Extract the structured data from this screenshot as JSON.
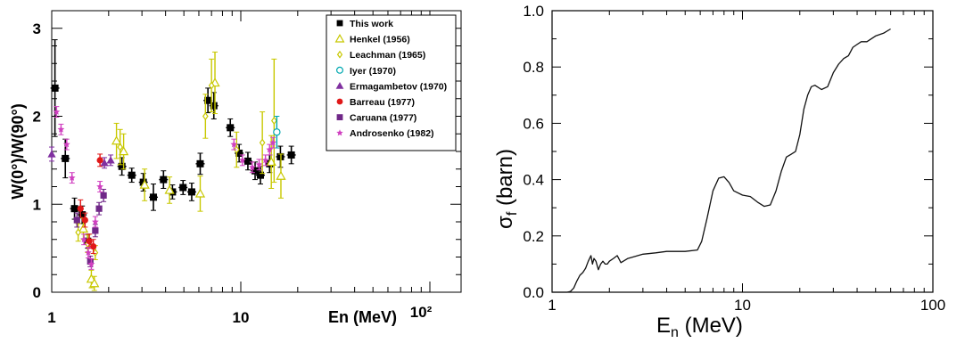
{
  "chart_data": [
    {
      "type": "scatter",
      "xlabel": "En (MeV)",
      "ylabel": "W(0°)/W(90°)",
      "xscale": "log",
      "xlim": [
        1,
        130
      ],
      "ylim": [
        0,
        3.2
      ],
      "xticklabels": [
        "1",
        "10",
        "10²"
      ],
      "yticklabels": [
        "0",
        "1",
        "2",
        "3"
      ],
      "legend_position": "top-right",
      "series": [
        {
          "name": "This work",
          "marker": "square-filled",
          "color": "#000000",
          "x": [
            1.04,
            1.18,
            1.32,
            1.45,
            1.55,
            2.35,
            2.65,
            3.05,
            3.45,
            3.9,
            4.35,
            4.95,
            5.5,
            6.1,
            6.7,
            7.2,
            8.8,
            9.8,
            10.9,
            11.9,
            12.7,
            14.2,
            16.2,
            18.5
          ],
          "y": [
            2.32,
            1.52,
            0.95,
            0.88,
            0.58,
            1.43,
            1.33,
            1.25,
            1.08,
            1.28,
            1.14,
            1.19,
            1.14,
            1.46,
            2.18,
            2.12,
            1.87,
            1.58,
            1.49,
            1.38,
            1.33,
            1.46,
            1.54,
            1.56
          ],
          "yerr": [
            0.55,
            0.22,
            0.12,
            0.1,
            0.08,
            0.1,
            0.08,
            0.1,
            0.15,
            0.1,
            0.08,
            0.08,
            0.1,
            0.12,
            0.14,
            0.15,
            0.1,
            0.1,
            0.1,
            0.1,
            0.1,
            0.1,
            0.12,
            0.1
          ]
        },
        {
          "name": "Henkel (1956)",
          "marker": "triangle-open",
          "color": "#c8c800",
          "x": [
            1.47,
            1.62,
            1.68,
            2.2,
            2.4,
            3.1,
            4.2,
            6.1,
            7.3,
            14.5,
            16.3
          ],
          "y": [
            0.72,
            0.15,
            0.1,
            1.72,
            1.6,
            1.22,
            1.16,
            1.12,
            2.38,
            1.48,
            1.32
          ],
          "yerr": [
            0.12,
            0.1,
            0.08,
            0.2,
            0.2,
            0.18,
            0.15,
            0.2,
            0.35,
            0.3,
            0.25
          ]
        },
        {
          "name": "Leachman (1965)",
          "marker": "diamond-open",
          "color": "#c8c800",
          "x": [
            1.38,
            1.55,
            1.7,
            2.3,
            6.5,
            7.0,
            9.5,
            13.0,
            15.0
          ],
          "y": [
            0.68,
            0.55,
            0.45,
            1.65,
            2.0,
            2.35,
            1.62,
            1.7,
            1.95
          ],
          "yerr": [
            0.1,
            0.1,
            0.08,
            0.2,
            0.25,
            0.3,
            0.2,
            0.35,
            0.7
          ]
        },
        {
          "name": "Iyer (1970)",
          "marker": "circle-open",
          "color": "#00a8b0",
          "x": [
            15.5
          ],
          "y": [
            1.82
          ],
          "yerr": [
            0.18
          ]
        },
        {
          "name": "Ermagambetov (1970)",
          "marker": "triangle-filled",
          "color": "#8030a0",
          "x": [
            1.0,
            1.9,
            2.05
          ],
          "y": [
            1.57,
            1.47,
            1.5
          ],
          "yerr": [
            0.08,
            0.06,
            0.06
          ]
        },
        {
          "name": "Barreau (1977)",
          "marker": "circle-filled",
          "color": "#e01818",
          "x": [
            1.42,
            1.5,
            1.58,
            1.66,
            1.8
          ],
          "y": [
            0.95,
            0.82,
            0.58,
            0.52,
            1.5
          ],
          "yerr": [
            0.1,
            0.08,
            0.08,
            0.08,
            0.07
          ]
        },
        {
          "name": "Caruana (1977)",
          "marker": "square-filled",
          "color": "#702888",
          "x": [
            1.36,
            1.6,
            1.7,
            1.78,
            1.88
          ],
          "y": [
            0.82,
            0.35,
            0.7,
            0.95,
            1.1
          ],
          "yerr": [
            0.08,
            0.06,
            0.07,
            0.07,
            0.07
          ]
        },
        {
          "name": "Androsenko (1982)",
          "marker": "star",
          "color": "#d040c0",
          "x": [
            1.06,
            1.12,
            1.2,
            1.28,
            1.48,
            1.56,
            1.62,
            1.7,
            1.8,
            9.2,
            10.2,
            11.5,
            12.5,
            13.5,
            14.2,
            14.8
          ],
          "y": [
            2.05,
            1.85,
            1.68,
            1.3,
            0.6,
            0.45,
            0.32,
            0.8,
            1.2,
            1.68,
            1.5,
            1.42,
            1.45,
            1.5,
            1.62,
            1.7
          ],
          "yerr": [
            0.06,
            0.06,
            0.06,
            0.06,
            0.06,
            0.06,
            0.06,
            0.06,
            0.06,
            0.06,
            0.06,
            0.06,
            0.06,
            0.06,
            0.06,
            0.06
          ]
        }
      ]
    },
    {
      "type": "line",
      "xlabel": "E_n (MeV)",
      "ylabel": "σ_f (barn)",
      "xlabel_main": "E",
      "xlabel_sub": "n",
      "xlabel_rest": " (MeV)",
      "ylabel_main": "σ",
      "ylabel_sub": "f",
      "ylabel_rest": " (barn)",
      "xscale": "log",
      "xlim": [
        1,
        100
      ],
      "ylim": [
        0,
        1.0
      ],
      "xticklabels": [
        "1",
        "10",
        "100"
      ],
      "yticklabels": [
        "0.0",
        "0.2",
        "0.4",
        "0.6",
        "0.8",
        "1.0"
      ],
      "series": [
        {
          "name": "",
          "x": [
            1.0,
            1.1,
            1.2,
            1.25,
            1.3,
            1.35,
            1.4,
            1.45,
            1.5,
            1.55,
            1.6,
            1.63,
            1.66,
            1.7,
            1.75,
            1.8,
            1.85,
            1.9,
            1.95,
            2.0,
            2.1,
            2.2,
            2.3,
            2.5,
            3.0,
            3.5,
            4.0,
            5.0,
            5.8,
            6.1,
            6.5,
            7.0,
            7.5,
            8.0,
            8.5,
            9.0,
            10.0,
            11.0,
            12.0,
            13.0,
            14.0,
            15.0,
            16.0,
            17.0,
            18.0,
            19.0,
            20.0,
            21.0,
            22.0,
            23.0,
            24.0,
            26.0,
            28.0,
            30.0,
            32.0,
            34.0,
            36.0,
            38.0,
            40.0,
            42.0,
            45.0,
            50.0,
            55.0,
            60.0
          ],
          "y": [
            0.0,
            0.0,
            0.0,
            0.003,
            0.015,
            0.04,
            0.06,
            0.07,
            0.085,
            0.11,
            0.13,
            0.1,
            0.12,
            0.11,
            0.08,
            0.1,
            0.11,
            0.1,
            0.1,
            0.11,
            0.12,
            0.13,
            0.105,
            0.12,
            0.135,
            0.14,
            0.145,
            0.145,
            0.15,
            0.18,
            0.26,
            0.36,
            0.405,
            0.41,
            0.39,
            0.36,
            0.345,
            0.34,
            0.32,
            0.305,
            0.31,
            0.36,
            0.43,
            0.48,
            0.49,
            0.5,
            0.56,
            0.65,
            0.7,
            0.73,
            0.735,
            0.72,
            0.73,
            0.78,
            0.81,
            0.83,
            0.84,
            0.87,
            0.88,
            0.89,
            0.89,
            0.91,
            0.92,
            0.935
          ]
        }
      ]
    }
  ]
}
